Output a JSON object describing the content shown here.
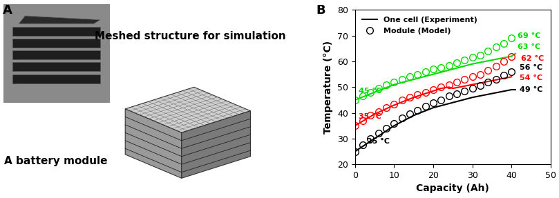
{
  "panel_labels": [
    "A",
    "B"
  ],
  "photo_captions": [
    "A battery module",
    "Meshed structure for simulation"
  ],
  "chart_data": {
    "type": "line",
    "x_label": "Capacity (Ah)",
    "y_label": "Temperature (°C)",
    "xlim": [
      0,
      50
    ],
    "xticks": [
      0,
      10,
      20,
      30,
      40,
      50
    ],
    "ylim": [
      20,
      80
    ],
    "yticks": [
      20,
      30,
      40,
      50,
      60,
      70,
      80
    ],
    "legend": "upper left",
    "series": [
      {
        "name": "One cell (Experiment)",
        "type": "line",
        "line_style": "solid",
        "color": "#000000",
        "x": [
          0,
          5,
          10,
          15,
          20,
          25,
          30,
          35,
          40,
          41
        ],
        "values": [
          25,
          30,
          35,
          39,
          42,
          44,
          46,
          47.5,
          49,
          49
        ]
      },
      {
        "name": "One cell (Experiment)",
        "type": "line",
        "line_style": "solid",
        "color": "#ff0000",
        "x": [
          0,
          5,
          10,
          15,
          20,
          22,
          24,
          25,
          30,
          35,
          40
        ],
        "values": [
          35,
          39.5,
          43,
          46,
          48.5,
          49.5,
          50,
          49.5,
          51,
          52.5,
          54
        ]
      },
      {
        "name": "One cell (Experiment)",
        "type": "line",
        "line_style": "solid",
        "color": "#00dd00",
        "x": [
          0,
          5,
          10,
          15,
          20,
          25,
          30,
          35,
          40,
          41
        ],
        "values": [
          45,
          48,
          51,
          53,
          55,
          57,
          59,
          60.5,
          62,
          63
        ]
      },
      {
        "name": "Module (Model)",
        "type": "scatter",
        "marker": "circle",
        "color": "#000000",
        "x": [
          0,
          2,
          4,
          6,
          8,
          10,
          12,
          14,
          16,
          18,
          20,
          22,
          24,
          26,
          28,
          30,
          32,
          34,
          36,
          38,
          40
        ],
        "values": [
          25,
          27.5,
          30,
          32,
          34,
          36,
          38,
          39.5,
          41,
          42.5,
          44,
          45,
          46.5,
          47.5,
          48.5,
          49.5,
          50.5,
          52,
          53,
          54.5,
          56
        ]
      },
      {
        "name": "Module (Model)",
        "type": "scatter",
        "marker": "circle",
        "color": "#ff0000",
        "x": [
          0,
          2,
          4,
          6,
          8,
          10,
          12,
          14,
          16,
          18,
          20,
          22,
          24,
          26,
          28,
          30,
          32,
          34,
          36,
          38,
          40
        ],
        "values": [
          35,
          37,
          39,
          40.5,
          42,
          43.5,
          45,
          46,
          47,
          48,
          49,
          50,
          51,
          52,
          53,
          54,
          55,
          56.5,
          58,
          60,
          62
        ]
      },
      {
        "name": "Module (Model)",
        "type": "scatter",
        "marker": "circle",
        "color": "#00dd00",
        "x": [
          0,
          2,
          4,
          6,
          8,
          10,
          12,
          14,
          16,
          18,
          20,
          22,
          24,
          26,
          28,
          30,
          32,
          34,
          36,
          38,
          40
        ],
        "values": [
          45,
          46.5,
          48,
          49.5,
          51,
          52,
          53,
          54,
          55,
          56,
          57,
          57.5,
          58.5,
          59.5,
          60.5,
          61.5,
          62.5,
          64,
          65.5,
          67,
          69
        ]
      }
    ],
    "annotations": [
      {
        "text": "45 °C",
        "x": 1,
        "y": 48.5,
        "color": "#00dd00"
      },
      {
        "text": "35 °C",
        "x": 1,
        "y": 38.5,
        "color": "#ff0000"
      },
      {
        "text": "25 °C",
        "x": 3,
        "y": 29,
        "color": "#000000"
      },
      {
        "text": "69 °C",
        "x": 41.5,
        "y": 70,
        "color": "#00dd00"
      },
      {
        "text": "63 °C",
        "x": 41.5,
        "y": 65.5,
        "color": "#00dd00"
      },
      {
        "text": "62 °C",
        "x": 42.5,
        "y": 61,
        "color": "#ff0000"
      },
      {
        "text": "56 °C",
        "x": 42,
        "y": 57.5,
        "color": "#000000"
      },
      {
        "text": "54 °C",
        "x": 42,
        "y": 53.5,
        "color": "#ff0000"
      },
      {
        "text": "49 °C",
        "x": 42,
        "y": 49,
        "color": "#000000"
      }
    ]
  }
}
